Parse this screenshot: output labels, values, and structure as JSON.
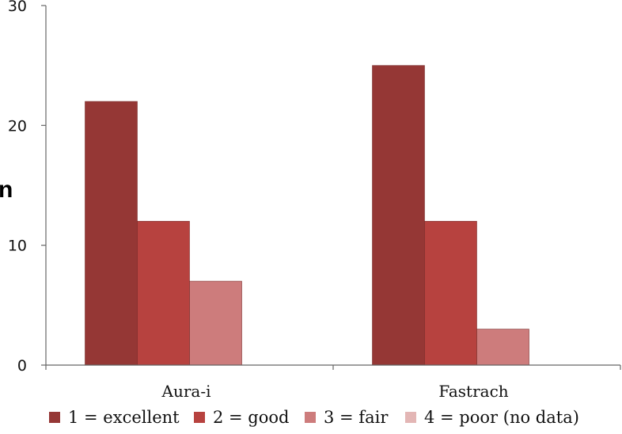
{
  "chart_data": {
    "type": "bar",
    "ylabel": "n",
    "ylim": [
      0,
      30
    ],
    "yticks": [
      0,
      10,
      20,
      30
    ],
    "categories": [
      "Aura-i",
      "Fastrach"
    ],
    "series": [
      {
        "name": "1 = excellent",
        "values": [
          22,
          25
        ],
        "color": "#953735"
      },
      {
        "name": "2 = good",
        "values": [
          12,
          12
        ],
        "color": "#b7423f"
      },
      {
        "name": "3 = fair",
        "values": [
          7,
          3
        ],
        "color": "#cd7c7c"
      },
      {
        "name": "4 = poor (no data)",
        "values": [
          null,
          null
        ],
        "color": "#e3b6b5"
      }
    ],
    "grid": false,
    "legend_position": "bottom"
  }
}
